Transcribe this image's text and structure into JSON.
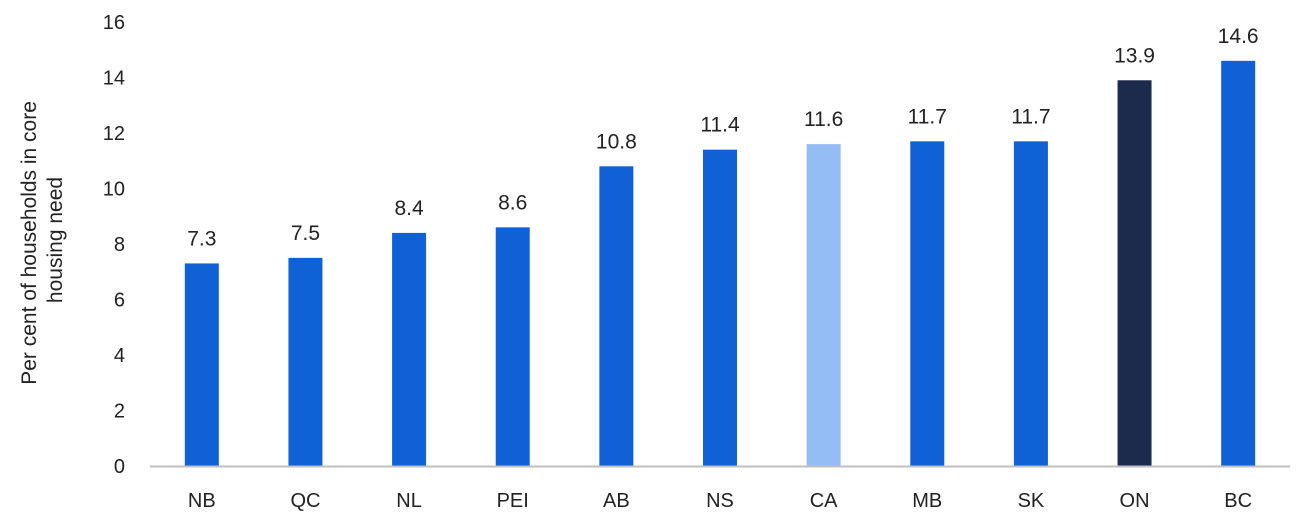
{
  "chart_data": {
    "type": "bar",
    "title": "",
    "xlabel": "",
    "ylabel_lines": [
      "Per cent of households in core",
      "housing need"
    ],
    "ylim": [
      0,
      16
    ],
    "yticks": [
      0,
      2,
      4,
      6,
      8,
      10,
      12,
      14,
      16
    ],
    "grid": false,
    "legend": "none",
    "categories": [
      "NB",
      "QC",
      "NL",
      "PEI",
      "AB",
      "NS",
      "CA",
      "MB",
      "SK",
      "ON",
      "BC"
    ],
    "values": [
      7.3,
      7.5,
      8.4,
      8.6,
      10.8,
      11.4,
      11.6,
      11.7,
      11.7,
      13.9,
      14.6
    ],
    "value_labels": [
      "7.3",
      "7.5",
      "8.4",
      "8.6",
      "10.8",
      "11.4",
      "11.6",
      "11.7",
      "11.7",
      "13.9",
      "14.6"
    ],
    "colors": [
      "#1060d6",
      "#1060d6",
      "#1060d6",
      "#1060d6",
      "#1060d6",
      "#1060d6",
      "#94bcf5",
      "#1060d6",
      "#1060d6",
      "#1c2b4b",
      "#1060d6"
    ],
    "axis_color": "#bfbfbf"
  }
}
